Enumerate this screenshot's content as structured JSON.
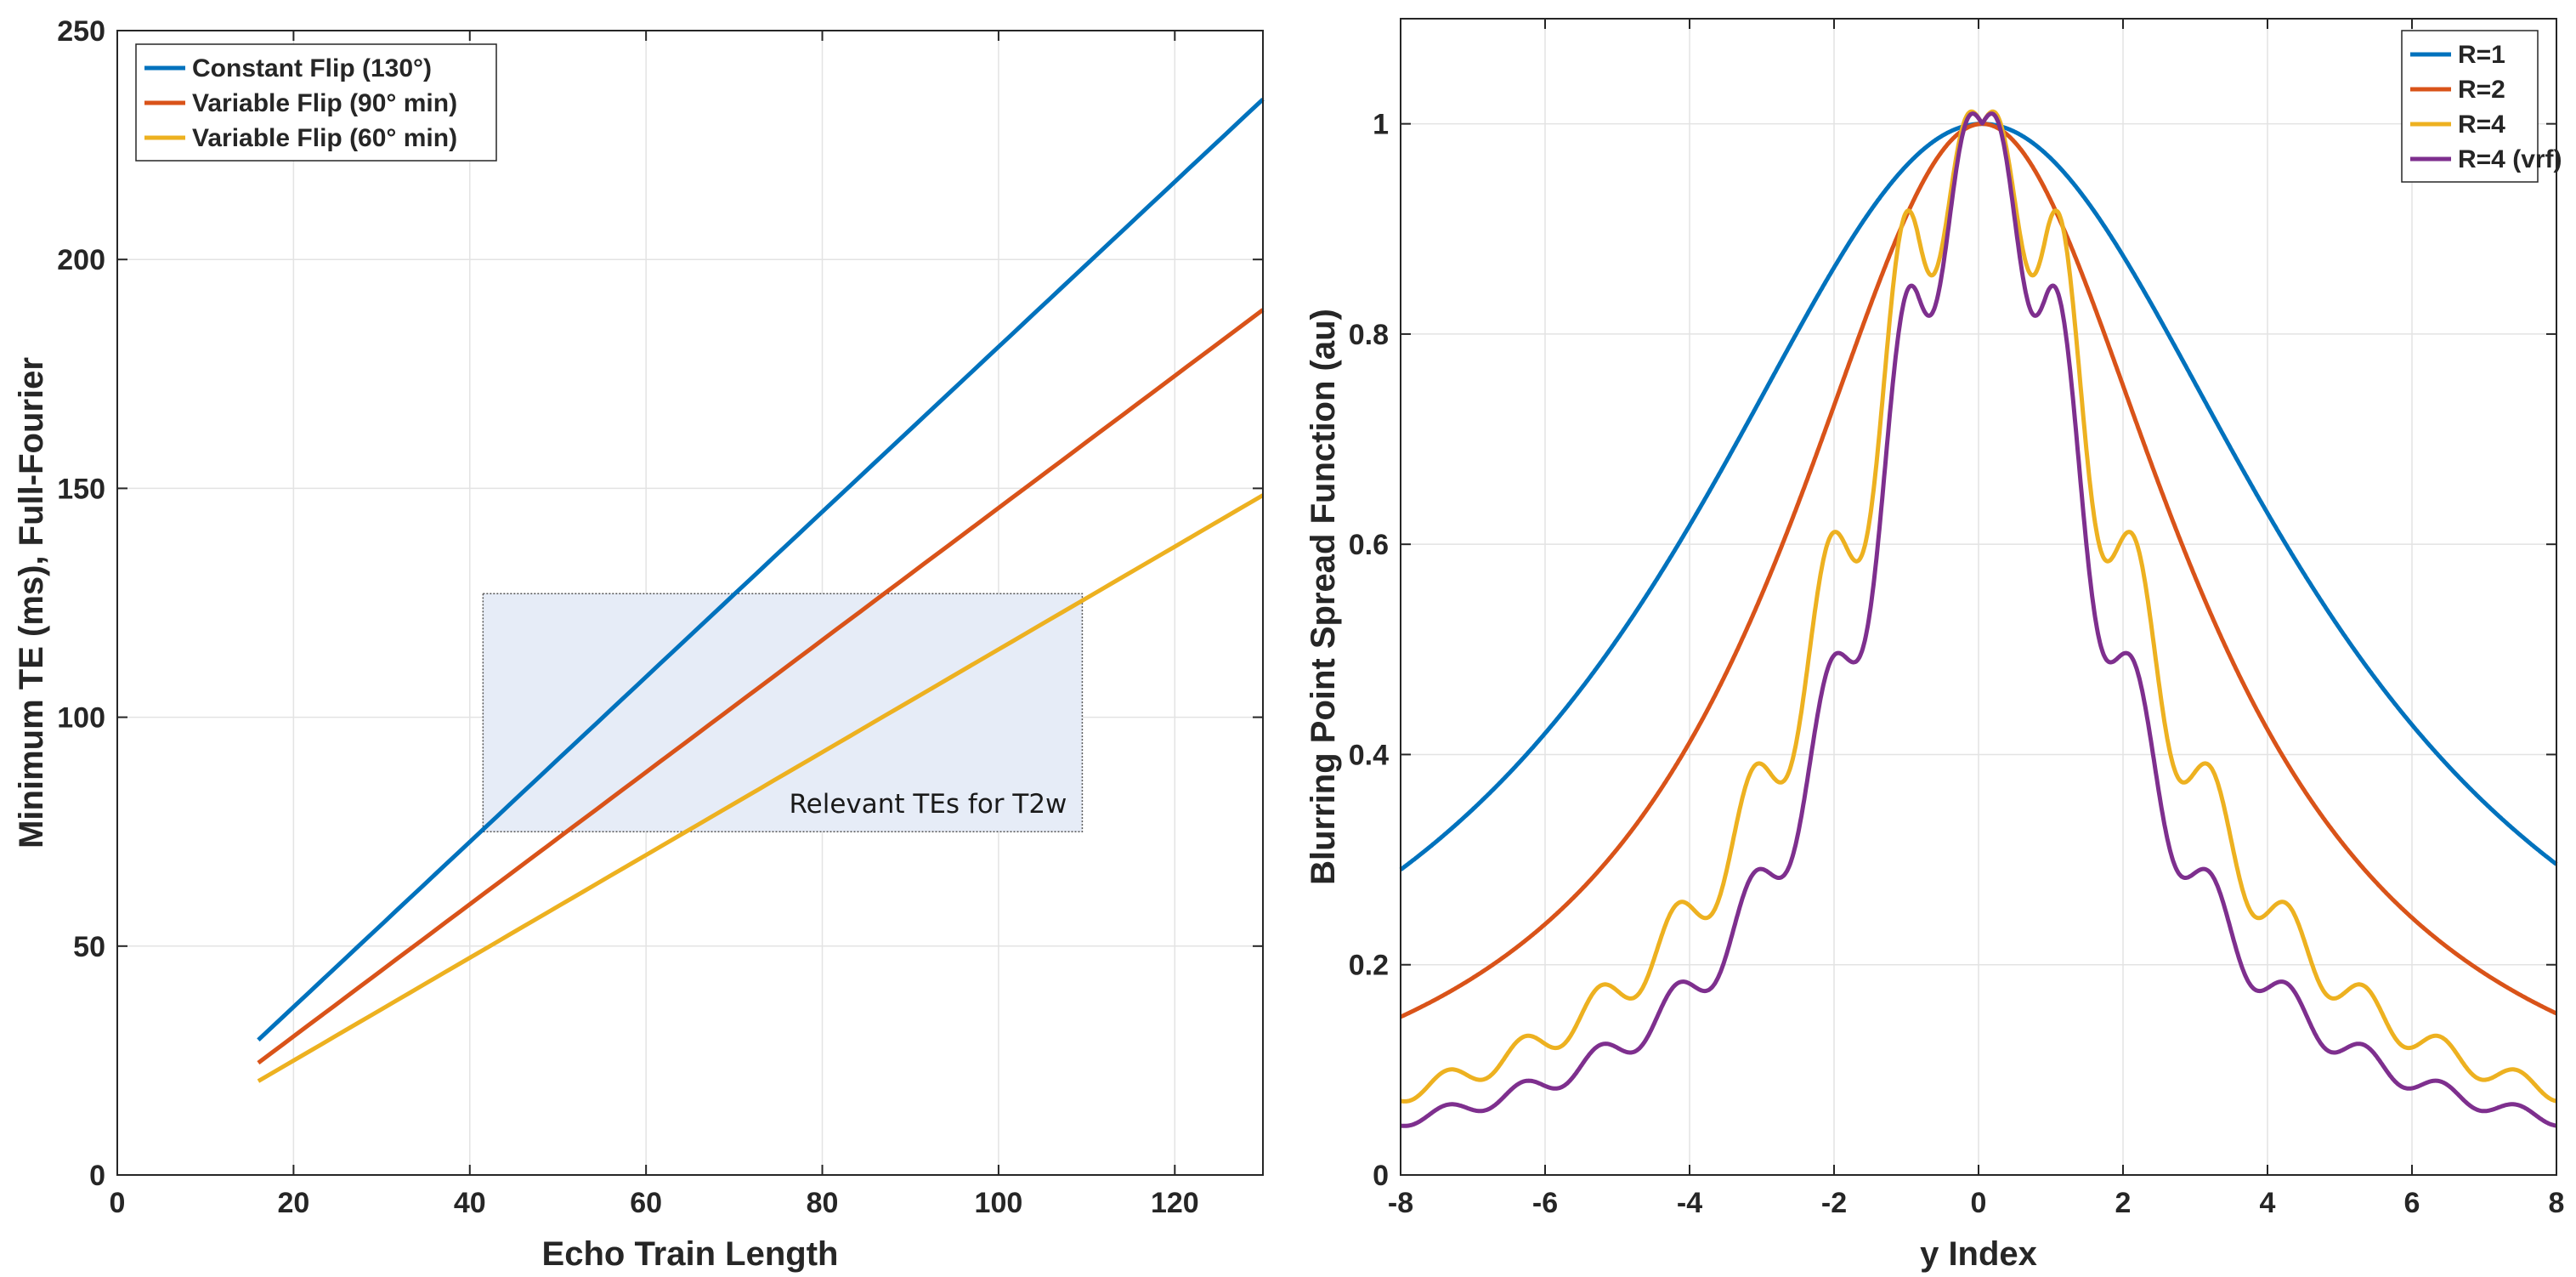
{
  "chart_data": [
    {
      "type": "line",
      "xlabel": "Echo Train Length",
      "ylabel": "Minimum TE (ms), Full-Fourier",
      "xlim": [
        0,
        130
      ],
      "ylim": [
        0,
        250
      ],
      "xticks": [
        0,
        20,
        40,
        60,
        80,
        100,
        120
      ],
      "yticks": [
        0,
        50,
        100,
        150,
        200,
        250
      ],
      "grid": true,
      "legend_position": "top-left",
      "series": [
        {
          "name": "Constant Flip (130°)",
          "color": "#0072BD",
          "x": [
            16,
            130
          ],
          "y": [
            29.5,
            235
          ]
        },
        {
          "name": "Variable Flip (90° min)",
          "color": "#D95319",
          "x": [
            16,
            130
          ],
          "y": [
            24.5,
            189
          ]
        },
        {
          "name": "Variable Flip (60° min)",
          "color": "#EDB120",
          "x": [
            16,
            130
          ],
          "y": [
            20.5,
            148.5
          ]
        }
      ],
      "annotation": {
        "text": "Relevant TEs for T2w",
        "x_range": [
          41.5,
          109.5
        ],
        "y_range": [
          75,
          127
        ],
        "fill": "#E6ECF7"
      }
    },
    {
      "type": "line",
      "xlabel": "y Index",
      "ylabel": "Blurring Point Spread Function (au)",
      "xlim": [
        -8,
        8
      ],
      "ylim": [
        0,
        1.1
      ],
      "xticks": [
        -8,
        -6,
        -4,
        -2,
        0,
        2,
        4,
        6,
        8
      ],
      "yticks": [
        0,
        0.2,
        0.4,
        0.6,
        0.8,
        1
      ],
      "grid": true,
      "legend_position": "top-right",
      "series": [
        {
          "name": "R=1",
          "color": "#0072BD",
          "center": 0.05,
          "peak": 1.0,
          "value_at_edge": 0.293,
          "shape": "lorentzian"
        },
        {
          "name": "R=2",
          "color": "#D95319",
          "center": 0.05,
          "peak": 1.0,
          "value_at_edge": 0.152,
          "shape": "lorentzian"
        },
        {
          "name": "R=4",
          "color": "#EDB120",
          "center": 0.05,
          "peak": 1.0,
          "value_at_edge": 0.078,
          "shape": "lorentzian-ringing"
        },
        {
          "name": "R=4 (vrf)",
          "color": "#7E2F8E",
          "center": 0.05,
          "peak": 1.0,
          "value_at_edge": 0.052,
          "shape": "lorentzian-ringing"
        }
      ]
    }
  ]
}
